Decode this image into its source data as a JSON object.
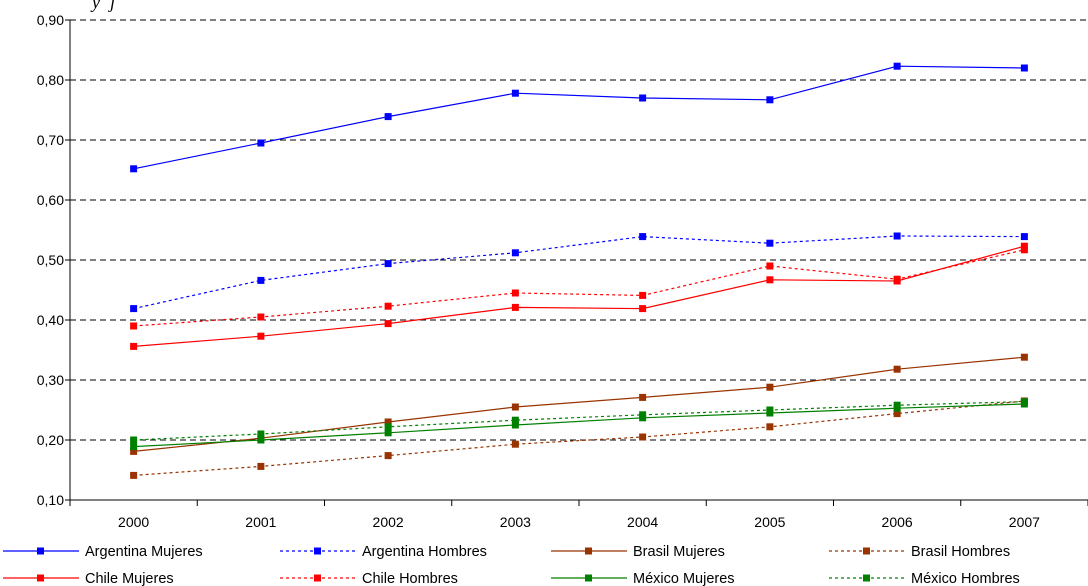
{
  "chart_data": {
    "type": "line",
    "title": "",
    "xlabel": "",
    "ylabel": "",
    "categories": [
      "2000",
      "2001",
      "2002",
      "2003",
      "2004",
      "2005",
      "2006",
      "2007"
    ],
    "ylim": [
      0.1,
      0.9
    ],
    "y_ticks": [
      "0,10",
      "0,20",
      "0,30",
      "0,40",
      "0,50",
      "0,60",
      "0,70",
      "0,80",
      "0,90"
    ],
    "grid": "horizontal dashed",
    "legend_position": "bottom",
    "series": [
      {
        "name": "Argentina Mujeres",
        "color": "#0000ff",
        "dash": "solid",
        "values": [
          0.652,
          0.695,
          0.739,
          0.778,
          0.77,
          0.767,
          0.823,
          0.82
        ]
      },
      {
        "name": "Argentina Hombres",
        "color": "#0000ff",
        "dash": "dotted",
        "values": [
          0.419,
          0.466,
          0.494,
          0.512,
          0.539,
          0.528,
          0.54,
          0.539
        ]
      },
      {
        "name": "Brasil Mujeres",
        "color": "#993300",
        "dash": "solid",
        "values": [
          0.181,
          0.203,
          0.23,
          0.255,
          0.271,
          0.288,
          0.318,
          0.338
        ]
      },
      {
        "name": "Brasil Hombres",
        "color": "#993300",
        "dash": "dotted",
        "values": [
          0.141,
          0.156,
          0.174,
          0.193,
          0.205,
          0.222,
          0.244,
          0.265
        ]
      },
      {
        "name": "Chile Mujeres",
        "color": "#ff0000",
        "dash": "solid",
        "values": [
          0.356,
          0.373,
          0.394,
          0.421,
          0.419,
          0.467,
          0.465,
          0.523
        ]
      },
      {
        "name": "Chile Hombres",
        "color": "#ff0000",
        "dash": "dotted",
        "values": [
          0.39,
          0.405,
          0.423,
          0.445,
          0.441,
          0.49,
          0.468,
          0.517
        ]
      },
      {
        "name": "México Mujeres",
        "color": "#008000",
        "dash": "solid",
        "values": [
          0.189,
          0.2,
          0.212,
          0.225,
          0.237,
          0.245,
          0.253,
          0.26
        ]
      },
      {
        "name": "México Hombres",
        "color": "#008000",
        "dash": "dotted",
        "values": [
          0.2,
          0.21,
          0.222,
          0.233,
          0.242,
          0.25,
          0.258,
          0.264
        ]
      }
    ]
  }
}
